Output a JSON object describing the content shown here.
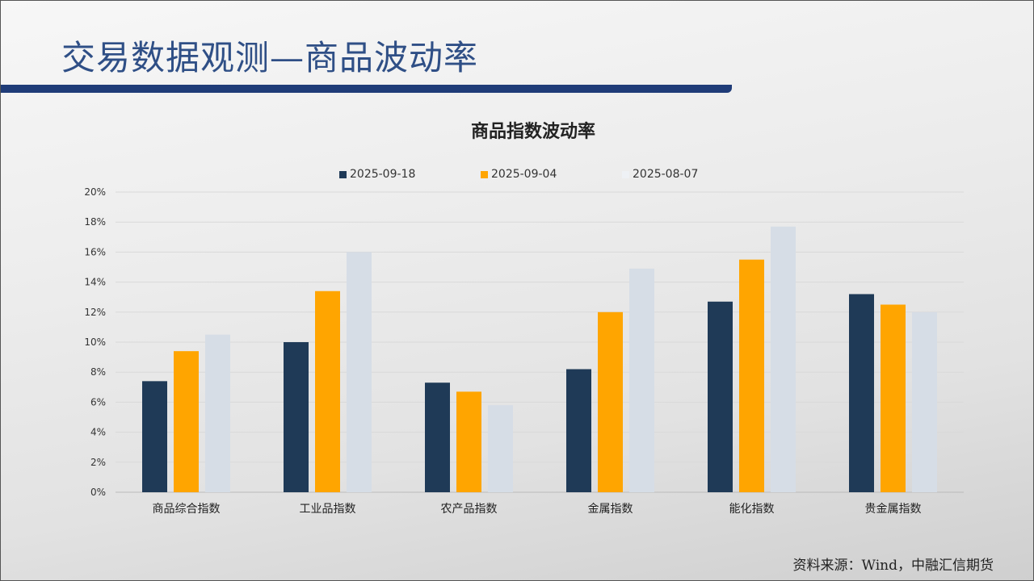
{
  "header": {
    "title": "交易数据观测—商品波动率"
  },
  "footer": {
    "source": "资料来源：Wind，中融汇信期货"
  },
  "chart_data": {
    "type": "bar",
    "title": "商品指数波动率",
    "categories": [
      "商品综合指数",
      "工业品指数",
      "农产品指数",
      "金属指数",
      "能化指数",
      "贵金属指数"
    ],
    "series": [
      {
        "name": "2025-09-18",
        "color": "#1f3a57",
        "values": [
          7.4,
          10.0,
          7.3,
          8.2,
          12.7,
          13.2
        ]
      },
      {
        "name": "2025-09-04",
        "color": "#ffa500",
        "values": [
          9.4,
          13.4,
          6.7,
          12.0,
          15.5,
          12.5
        ]
      },
      {
        "name": "2025-08-07",
        "color": "#d6dde6",
        "values": [
          10.5,
          16.0,
          5.8,
          14.9,
          17.7,
          12.0
        ]
      }
    ],
    "ylim": [
      0,
      20
    ],
    "yticks": [
      "0%",
      "2%",
      "4%",
      "6%",
      "8%",
      "10%",
      "12%",
      "14%",
      "16%",
      "18%",
      "20%"
    ],
    "grid": true,
    "legend": "top"
  }
}
